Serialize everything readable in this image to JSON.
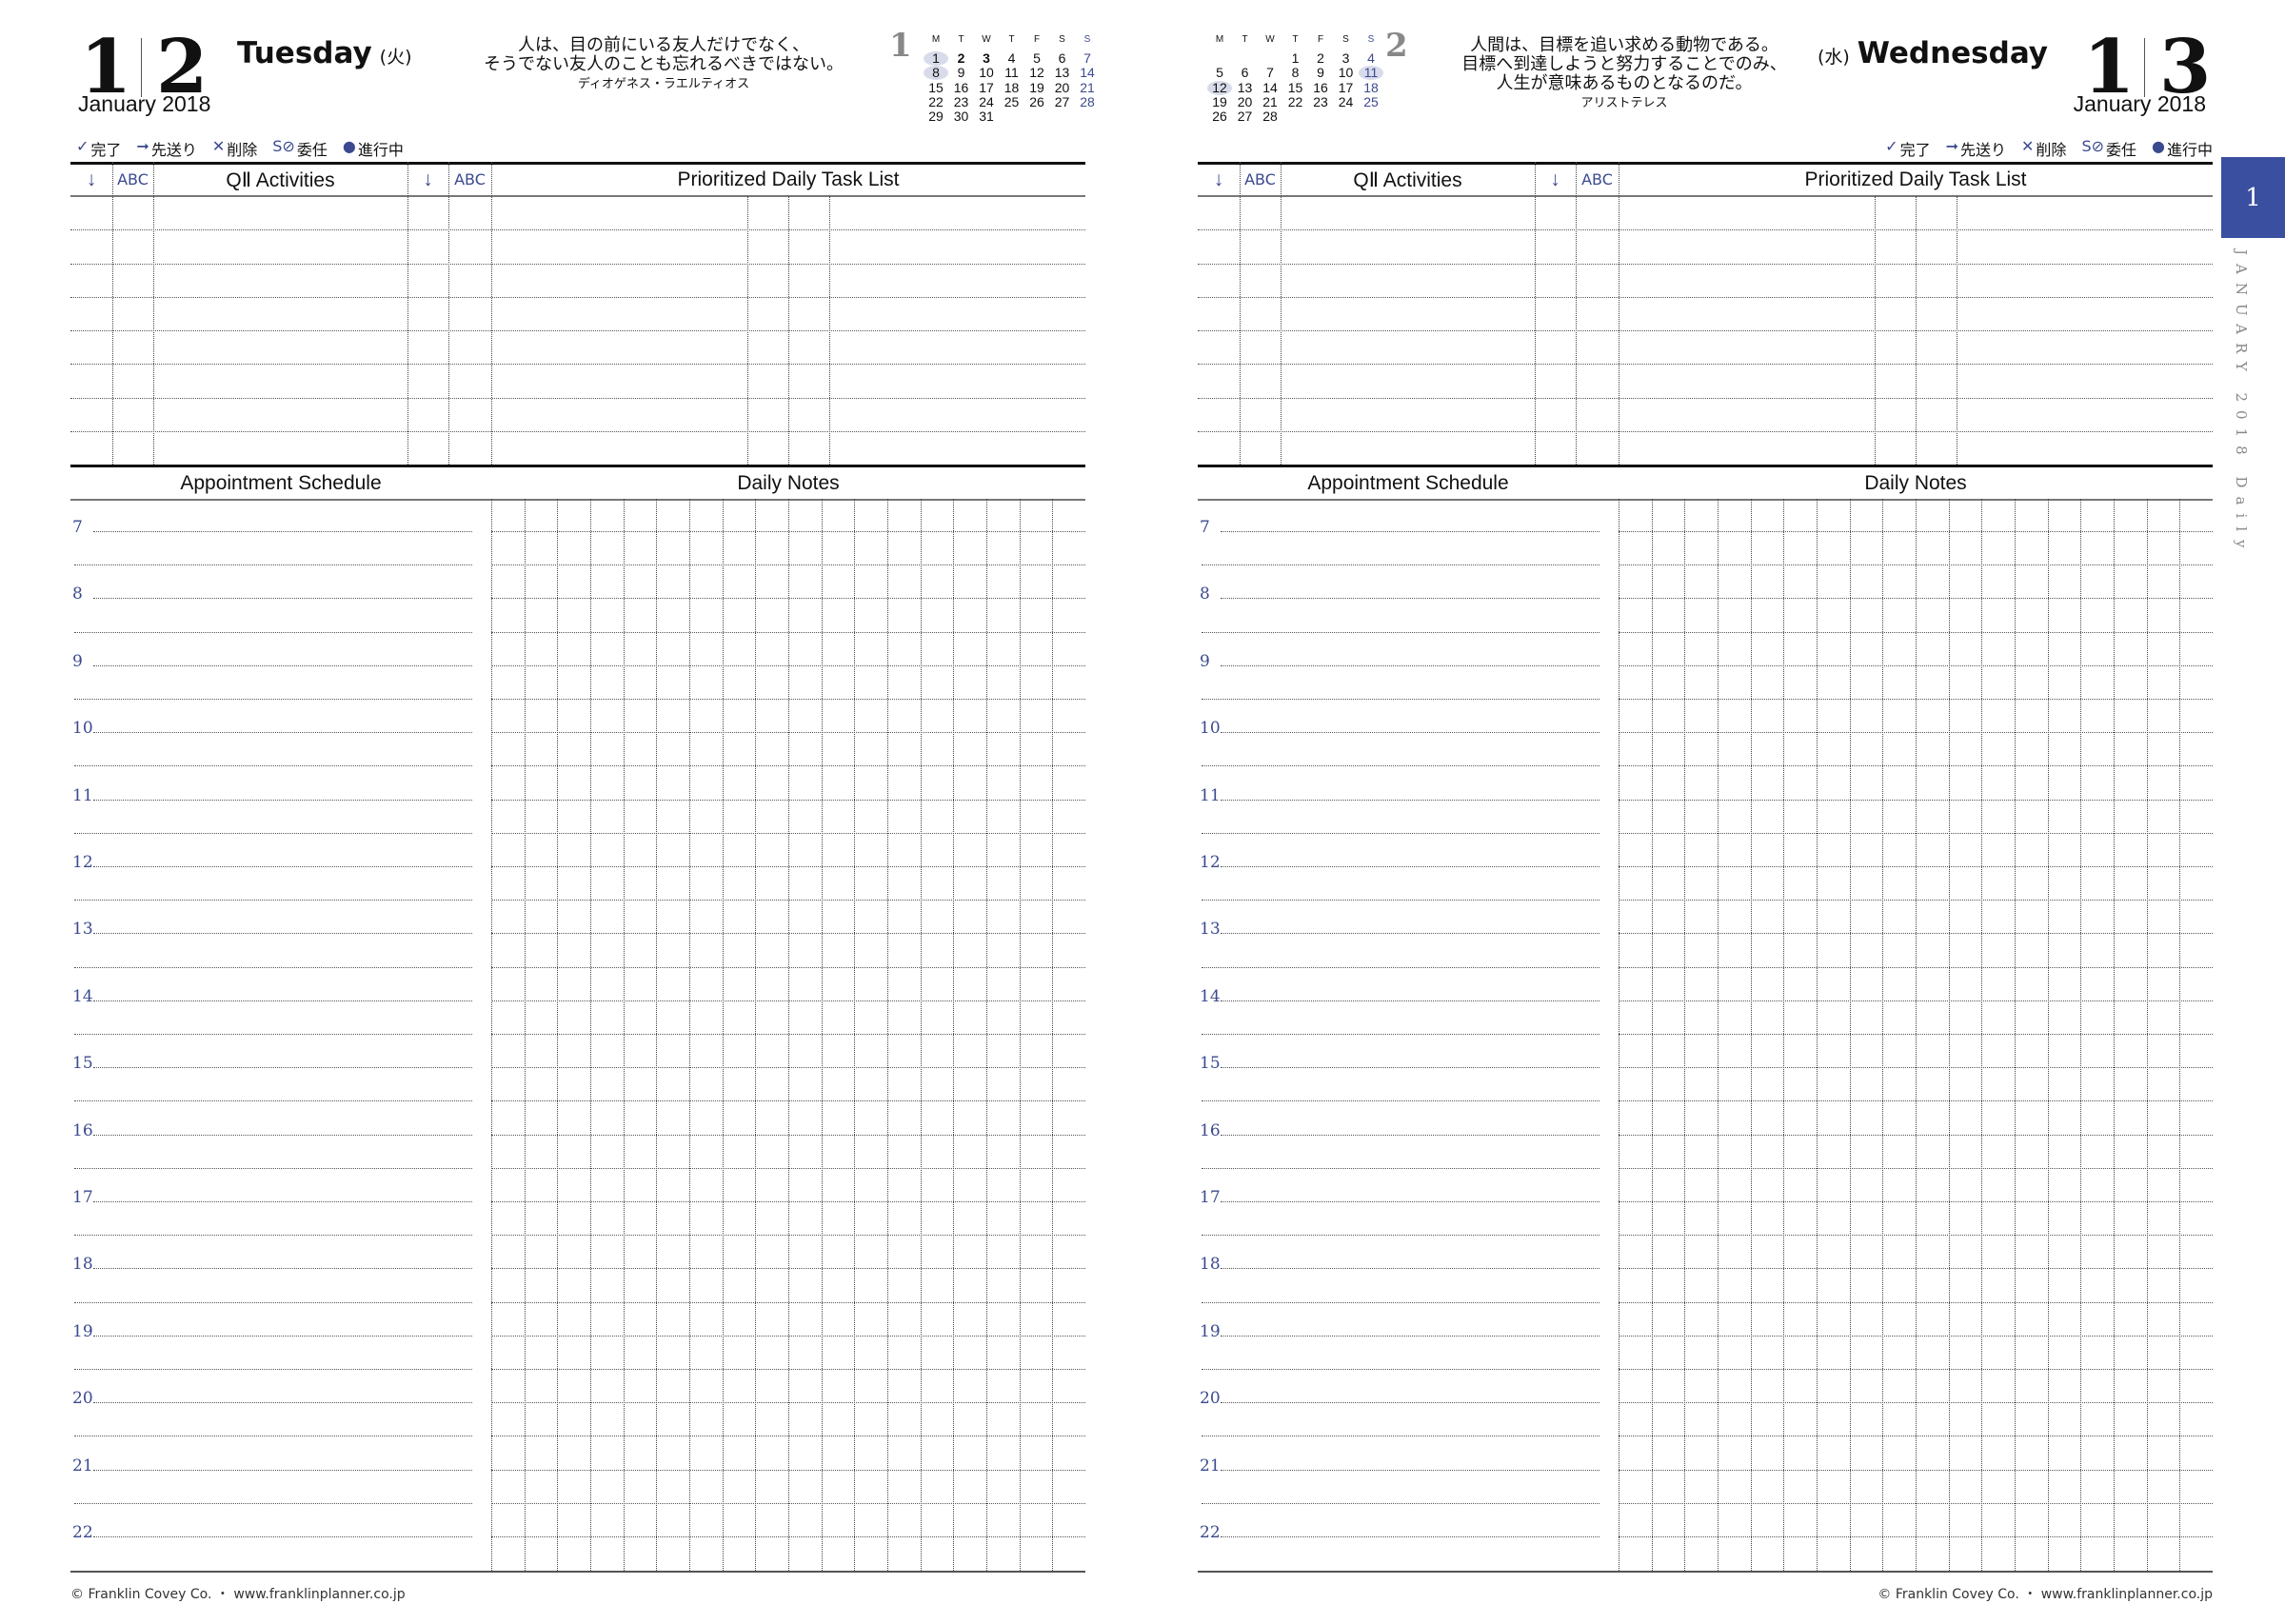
{
  "accent_color": "#3a4fa0",
  "legend": [
    {
      "symbol": "✓",
      "label": "完了"
    },
    {
      "symbol": "➞",
      "label": "先送り"
    },
    {
      "symbol": "✕",
      "label": "削除"
    },
    {
      "symbol": "S⊘",
      "label": "委任"
    },
    {
      "symbol": "●",
      "label": "進行中"
    }
  ],
  "table_headers": {
    "arrow": "↓",
    "abc": "ABC",
    "activities": "QⅡ Activities",
    "task_list": "Prioritized Daily Task List",
    "appointment": "Appointment Schedule",
    "notes": "Daily Notes"
  },
  "hours": [
    "7",
    "8",
    "9",
    "10",
    "11",
    "12",
    "13",
    "14",
    "15",
    "16",
    "17",
    "18",
    "19",
    "20",
    "21",
    "22"
  ],
  "footer": "© Franklin Covey Co. ・ www.franklinplanner.co.jp",
  "side_tab": {
    "month": "1",
    "label": "JANUARY 2018 Daily"
  },
  "pages": [
    {
      "month_num": "1",
      "day_num": "2",
      "month_year": "January 2018",
      "weekday": "Tuesday",
      "weekday_jp": "(火)",
      "quote": [
        "人は、目の前にいる友人だけでなく、",
        "そうでない友人のことも忘れるべきではない。"
      ],
      "author": "ディオゲネス・ラエルティオス",
      "mini_calendar": {
        "month": "1",
        "headers": [
          "M",
          "T",
          "W",
          "T",
          "F",
          "S",
          "S"
        ],
        "weeks": [
          [
            "1",
            "2",
            "3",
            "4",
            "5",
            "6",
            "7"
          ],
          [
            "8",
            "9",
            "10",
            "11",
            "12",
            "13",
            "14"
          ],
          [
            "15",
            "16",
            "17",
            "18",
            "19",
            "20",
            "21"
          ],
          [
            "22",
            "23",
            "24",
            "25",
            "26",
            "27",
            "28"
          ],
          [
            "29",
            "30",
            "31",
            "",
            "",
            "",
            ""
          ]
        ],
        "highlighted": [
          "1",
          "8"
        ],
        "bold": [
          "2",
          "3"
        ]
      }
    },
    {
      "month_num": "1",
      "day_num": "3",
      "month_year": "January 2018",
      "weekday": "Wednesday",
      "weekday_jp": "(水)",
      "quote": [
        "人間は、目標を追い求める動物である。",
        "目標へ到達しようと努力することでのみ、",
        "人生が意味あるものとなるのだ。"
      ],
      "author": "アリストテレス",
      "mini_calendar": {
        "month": "2",
        "headers": [
          "M",
          "T",
          "W",
          "T",
          "F",
          "S",
          "S"
        ],
        "weeks": [
          [
            "",
            "",
            "",
            "1",
            "2",
            "3",
            "4"
          ],
          [
            "5",
            "6",
            "7",
            "8",
            "9",
            "10",
            "11"
          ],
          [
            "12",
            "13",
            "14",
            "15",
            "16",
            "17",
            "18"
          ],
          [
            "19",
            "20",
            "21",
            "22",
            "23",
            "24",
            "25"
          ],
          [
            "26",
            "27",
            "28",
            "",
            "",
            "",
            ""
          ]
        ],
        "highlighted": [
          "11",
          "12"
        ],
        "bold": []
      }
    }
  ]
}
